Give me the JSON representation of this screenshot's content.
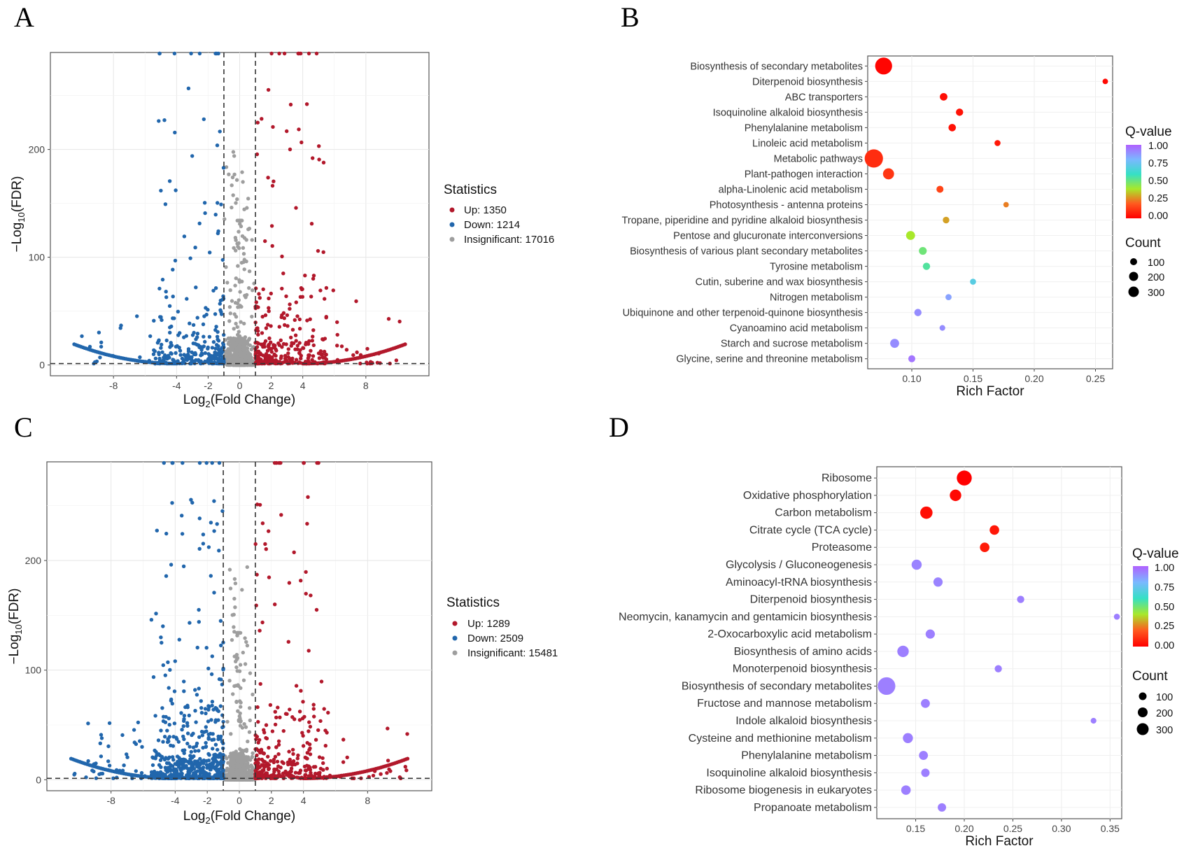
{
  "panels": {
    "a": "A",
    "b": "B",
    "c": "C",
    "d": "D"
  },
  "colors": {
    "up": "#b2182b",
    "down": "#2166ac",
    "insig": "#9e9e9e",
    "q_gradient": [
      "#ff0000",
      "#ff5a1f",
      "#a8e82a",
      "#35e0c5",
      "#7ab8ff",
      "#b060ff"
    ]
  },
  "chart_data": [
    {
      "id": "A",
      "type": "scatter",
      "subtype": "volcano",
      "xlabel": "Log2(Fold Change)",
      "ylabel": "-Log10(FDR)",
      "xticks": [
        -8,
        -4,
        -2,
        0,
        2,
        4,
        8
      ],
      "yticks": [
        0,
        100,
        200
      ],
      "xlim": [
        -12,
        12
      ],
      "ylim": [
        -10,
        290
      ],
      "fc_threshold": 1,
      "fdr_threshold": 1.3,
      "legend_title": "Statistics",
      "legend": [
        {
          "key": "up",
          "label": "Up: 1350"
        },
        {
          "key": "down",
          "label": "Down: 1214"
        },
        {
          "key": "insig",
          "label": "Insignificant: 17016"
        }
      ],
      "counts": {
        "up": 1350,
        "down": 1214,
        "insig": 17016
      },
      "seed": 11
    },
    {
      "id": "B",
      "type": "scatter",
      "subtype": "enrichment-bubble",
      "xlabel": "Rich Factor",
      "xticks": [
        0.1,
        0.15,
        0.2,
        0.25
      ],
      "xlim": [
        0.064,
        0.264
      ],
      "q_legend_title": "Q-value",
      "q_ticks": [
        "1.00",
        "0.75",
        "0.50",
        "0.25",
        "0.00"
      ],
      "count_legend_title": "Count",
      "count_ticks": [
        100,
        200,
        300
      ],
      "pathways": [
        {
          "name": "Biosynthesis of secondary metabolites",
          "rich": 0.077,
          "count": 270,
          "q": 0.01
        },
        {
          "name": "Diterpenoid biosynthesis",
          "rich": 0.258,
          "count": 8,
          "q": 0.02
        },
        {
          "name": "ABC transporters",
          "rich": 0.126,
          "count": 28,
          "q": 0.03
        },
        {
          "name": "Isoquinoline alkaloid biosynthesis",
          "rich": 0.139,
          "count": 25,
          "q": 0.04
        },
        {
          "name": "Phenylalanine metabolism",
          "rich": 0.133,
          "count": 26,
          "q": 0.04
        },
        {
          "name": "Linoleic acid metabolism",
          "rich": 0.17,
          "count": 12,
          "q": 0.05
        },
        {
          "name": "Metabolic pathways",
          "rich": 0.069,
          "count": 330,
          "q": 0.1
        },
        {
          "name": "Plant-pathogen interaction",
          "rich": 0.081,
          "count": 90,
          "q": 0.12
        },
        {
          "name": "alpha-Linolenic acid metabolism",
          "rich": 0.123,
          "count": 22,
          "q": 0.15
        },
        {
          "name": "Photosynthesis - antenna proteins",
          "rich": 0.177,
          "count": 8,
          "q": 0.25
        },
        {
          "name": "Tropane, piperidine and pyridine alkaloid biosynthesis",
          "rich": 0.128,
          "count": 18,
          "q": 0.3
        },
        {
          "name": "Pentose and glucuronate interconversions",
          "rich": 0.099,
          "count": 48,
          "q": 0.4
        },
        {
          "name": "Biosynthesis of various plant secondary metabolites",
          "rich": 0.109,
          "count": 32,
          "q": 0.5
        },
        {
          "name": "Tyrosine metabolism",
          "rich": 0.112,
          "count": 25,
          "q": 0.55
        },
        {
          "name": "Cutin, suberine and wax biosynthesis",
          "rich": 0.15,
          "count": 12,
          "q": 0.7
        },
        {
          "name": "Nitrogen metabolism",
          "rich": 0.13,
          "count": 14,
          "q": 0.85
        },
        {
          "name": "Ubiquinone and other terpenoid-quinone biosynthesis",
          "rich": 0.105,
          "count": 25,
          "q": 0.9
        },
        {
          "name": "Cyanoamino acid metabolism",
          "rich": 0.125,
          "count": 10,
          "q": 0.9
        },
        {
          "name": "Starch and sucrose metabolism",
          "rich": 0.086,
          "count": 48,
          "q": 0.9
        },
        {
          "name": "Glycine, serine and threonine metabolism",
          "rich": 0.1,
          "count": 22,
          "q": 0.95
        }
      ]
    },
    {
      "id": "C",
      "type": "scatter",
      "subtype": "volcano",
      "xlabel": "Log2(Fold Change)",
      "ylabel": "-Log10(FDR)",
      "xticks": [
        -8,
        -4,
        -2,
        0,
        2,
        4,
        8
      ],
      "yticks": [
        0,
        100,
        200
      ],
      "xlim": [
        -12,
        12
      ],
      "ylim": [
        -10,
        290
      ],
      "fc_threshold": 1,
      "fdr_threshold": 1.3,
      "legend_title": "Statistics",
      "legend": [
        {
          "key": "up",
          "label": "Up: 1289"
        },
        {
          "key": "down",
          "label": "Down: 2509"
        },
        {
          "key": "insig",
          "label": "Insignificant: 15481"
        }
      ],
      "counts": {
        "up": 1289,
        "down": 2509,
        "insig": 15481
      },
      "seed": 29
    },
    {
      "id": "D",
      "type": "scatter",
      "subtype": "enrichment-bubble",
      "xlabel": "Rich Factor",
      "xticks": [
        0.15,
        0.2,
        0.25,
        0.3,
        0.35
      ],
      "xlim": [
        0.11,
        0.362
      ],
      "q_legend_title": "Q-value",
      "q_ticks": [
        "1.00",
        "0.75",
        "0.50",
        "0.25",
        "0.00"
      ],
      "count_legend_title": "Count",
      "count_ticks": [
        100,
        200,
        300
      ],
      "pathways": [
        {
          "name": "Ribosome",
          "rich": 0.2,
          "count": 200,
          "q": 0.0
        },
        {
          "name": "Oxidative phosphorylation",
          "rich": 0.191,
          "count": 100,
          "q": 0.02
        },
        {
          "name": "Carbon metabolism",
          "rich": 0.161,
          "count": 120,
          "q": 0.03
        },
        {
          "name": "Citrate cycle (TCA cycle)",
          "rich": 0.231,
          "count": 60,
          "q": 0.05
        },
        {
          "name": "Proteasome",
          "rich": 0.221,
          "count": 60,
          "q": 0.06
        },
        {
          "name": "Glycolysis / Gluconeogenesis",
          "rich": 0.151,
          "count": 70,
          "q": 0.92
        },
        {
          "name": "Aminoacyl-tRNA biosynthesis",
          "rich": 0.173,
          "count": 55,
          "q": 0.92
        },
        {
          "name": "Diterpenoid biosynthesis",
          "rich": 0.258,
          "count": 25,
          "q": 0.93
        },
        {
          "name": "Neomycin, kanamycin and gentamicin biosynthesis",
          "rich": 0.357,
          "count": 12,
          "q": 0.93
        },
        {
          "name": "2-Oxocarboxylic acid metabolism",
          "rich": 0.165,
          "count": 55,
          "q": 0.93
        },
        {
          "name": "Biosynthesis of amino acids",
          "rich": 0.137,
          "count": 100,
          "q": 0.93
        },
        {
          "name": "Monoterpenoid biosynthesis",
          "rich": 0.235,
          "count": 25,
          "q": 0.93
        },
        {
          "name": "Biosynthesis of secondary metabolites",
          "rich": 0.12,
          "count": 300,
          "q": 0.93
        },
        {
          "name": "Fructose and mannose metabolism",
          "rich": 0.16,
          "count": 50,
          "q": 0.93
        },
        {
          "name": "Indole alkaloid biosynthesis",
          "rich": 0.333,
          "count": 10,
          "q": 0.93
        },
        {
          "name": "Cysteine and methionine metabolism",
          "rich": 0.142,
          "count": 70,
          "q": 0.93
        },
        {
          "name": "Phenylalanine metabolism",
          "rich": 0.158,
          "count": 50,
          "q": 0.93
        },
        {
          "name": "Isoquinoline alkaloid biosynthesis",
          "rich": 0.16,
          "count": 40,
          "q": 0.93
        },
        {
          "name": "Ribosome biogenesis in eukaryotes",
          "rich": 0.14,
          "count": 60,
          "q": 0.93
        },
        {
          "name": "Propanoate metabolism",
          "rich": 0.177,
          "count": 40,
          "q": 0.93
        }
      ]
    }
  ]
}
